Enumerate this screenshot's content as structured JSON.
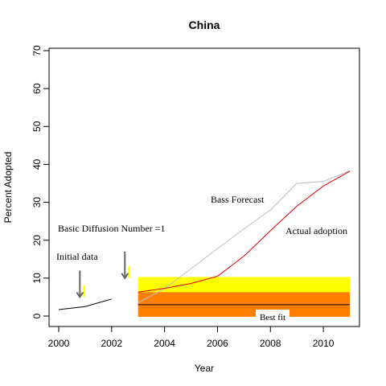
{
  "chart_data": {
    "type": "line",
    "title": "China",
    "xlabel": "Year",
    "ylabel": "Percent Adopted",
    "xlim": [
      2000,
      2011
    ],
    "ylim": [
      0,
      70
    ],
    "x_ticks": [
      2000,
      2002,
      2004,
      2006,
      2008,
      2010
    ],
    "y_ticks": [
      0,
      10,
      20,
      30,
      40,
      50,
      60,
      70
    ],
    "grid": false,
    "series": [
      {
        "name": "Initial data",
        "color": "#000000",
        "points": [
          [
            2000,
            1.7
          ],
          [
            2001,
            2.5
          ],
          [
            2002,
            4.5
          ]
        ]
      },
      {
        "name": "Bass Forecast",
        "color": "#bdbdbd",
        "points": [
          [
            2003,
            3.5
          ],
          [
            2004,
            7.2
          ],
          [
            2005,
            12.5
          ],
          [
            2006,
            17.8
          ],
          [
            2007,
            23.0
          ],
          [
            2008,
            28.0
          ],
          [
            2009,
            35.0
          ],
          [
            2010,
            35.5
          ],
          [
            2011,
            38.3
          ]
        ]
      },
      {
        "name": "Actual adoption",
        "color": "#e00000",
        "points": [
          [
            2003,
            6.3
          ],
          [
            2004,
            7.3
          ],
          [
            2005,
            8.6
          ],
          [
            2006,
            10.5
          ],
          [
            2007,
            15.8
          ],
          [
            2008,
            22.5
          ],
          [
            2009,
            29.0
          ],
          [
            2010,
            34.3
          ],
          [
            2011,
            38.2
          ]
        ]
      }
    ],
    "bands": [
      {
        "color": "#ffff00",
        "x": [
          2003,
          2011
        ],
        "y": [
          -0.2,
          10.3
        ]
      },
      {
        "color": "#ff8000",
        "x": [
          2003,
          2011
        ],
        "y": [
          -0.2,
          6.3
        ]
      }
    ],
    "hline": {
      "y": 3.0,
      "x": [
        2003,
        2011
      ],
      "color": "#000000"
    },
    "annotations": {
      "basic_diffusion": "Basic Diffusion Number =1",
      "initial_data": "Initial data",
      "bass_forecast": "Bass Forecast",
      "actual_adoption": "Actual adoption",
      "best_fit": "Best fit"
    },
    "arrows": [
      {
        "x": 2000.8,
        "y_from": 12.0,
        "y_to": 5.0
      },
      {
        "x": 2002.5,
        "y_from": 17.0,
        "y_to": 10.0
      }
    ]
  }
}
